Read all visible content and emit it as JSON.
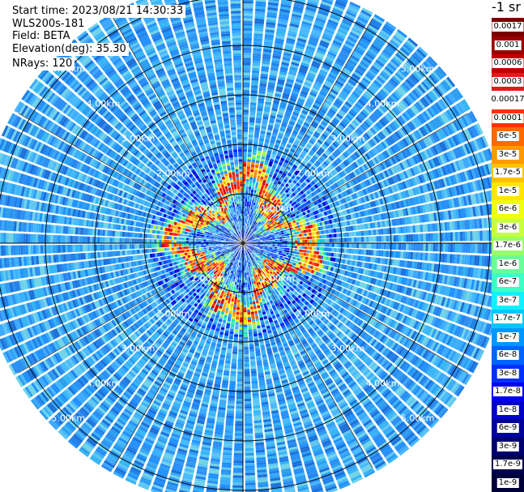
{
  "info": {
    "start_time": "Start time: 2023/08/21 14:30:33",
    "instrument": "WLS200s-181",
    "field": "Field: BETA",
    "elevation": "Elevation(deg): 35.30",
    "nrays": "NRays: 120"
  },
  "chart_data": {
    "type": "heatmap",
    "projection": "polar",
    "field": "BETA",
    "nrays": 120,
    "elevation_deg": 35.3,
    "max_range_km": 5.0,
    "range_ring_labels": [
      "1.00km",
      "2.00km",
      "3.00km",
      "4.00km",
      "5.00km"
    ],
    "range_rings_km": [
      1,
      2,
      3,
      4,
      5
    ],
    "colorbar_unit": "-1 sr",
    "colorbar_labels": [
      "0.0017",
      "0.001",
      "0.0006",
      "0.0003",
      "0.00017",
      "0.0001",
      "6e-5",
      "3e-5",
      "1.7e-5",
      "1e-5",
      "6e-6",
      "3e-6",
      "1.7e-6",
      "1e-6",
      "6e-7",
      "3e-7",
      "1.7e-7",
      "1e-7",
      "6e-8",
      "3e-8",
      "1.7e-8",
      "1e-8",
      "6e-9",
      "3e-9",
      "1.7e-9",
      "1e-9"
    ],
    "colorbar_colors": [
      "#7a0000",
      "#9a0000",
      "#c00000",
      "#e41a1a",
      "#ffffff",
      "#ff3300",
      "#ff6a00",
      "#ff9900",
      "#ffc200",
      "#ffe600",
      "#f0ff10",
      "#c8ff3c",
      "#96ff6a",
      "#6aff96",
      "#3cffc6",
      "#10f0ff",
      "#00c8ff",
      "#0096ff",
      "#0064ff",
      "#0030ff",
      "#0000f0",
      "#0000c8",
      "#00009a",
      "#00006e",
      "#000050",
      "#000038"
    ],
    "high_return_ring_km": [
      0.55,
      1.6
    ],
    "background_beta_range": [
      "3e-8",
      "3e-7"
    ]
  }
}
